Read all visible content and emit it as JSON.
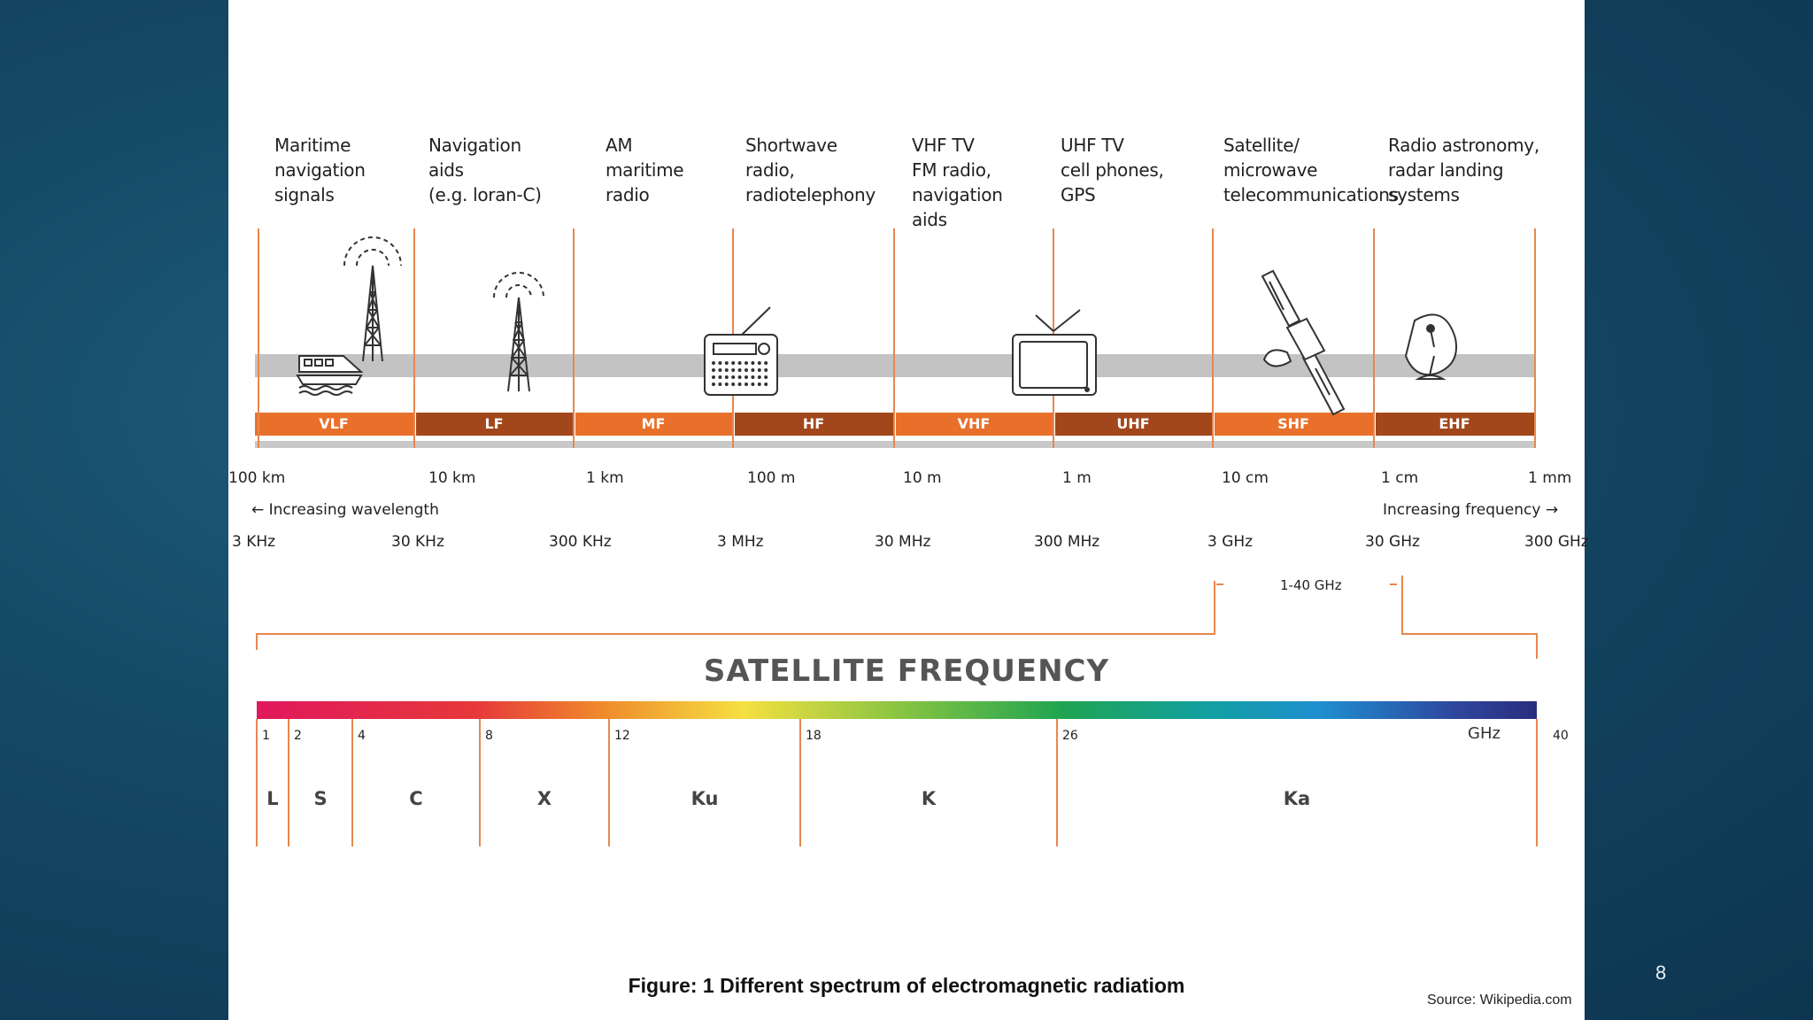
{
  "slide_number": "8",
  "caption": "Figure: 1 Different spectrum of electromagnetic radiatiom",
  "source": "Source: Wikipedia.com",
  "colors": {
    "light_band": "#e8702a",
    "dark_band": "#a2471c",
    "divider": "#e8874f",
    "gray_bar": "#c3c3c3"
  },
  "uses": [
    "Maritime\nnavigation\nsignals",
    "Navigation\naids\n(e.g. loran-C)",
    "AM\nmaritime\nradio",
    "Shortwave\nradio,\nradiotelephony",
    "VHF TV\nFM radio,\nnavigation\naids",
    "UHF TV\ncell phones,\nGPS",
    "Satellite/\nmicrowave\ntelecommunications",
    "Radio astronomy,\nradar landing\nsystems"
  ],
  "icons": [
    "ship-icon",
    "radio-tower-icon",
    "radio-tower-icon",
    "radio-icon",
    "television-icon",
    "satellite-icon",
    "satellite-dish-icon"
  ],
  "bands": [
    "VLF",
    "LF",
    "MF",
    "HF",
    "VHF",
    "UHF",
    "SHF",
    "EHF"
  ],
  "wavelengths": [
    "100 km",
    "10 km",
    "1 km",
    "100 m",
    "10 m",
    "1 m",
    "10 cm",
    "1 cm",
    "1 mm"
  ],
  "frequencies": [
    "3 KHz",
    "30 KHz",
    "300 KHz",
    "3 MHz",
    "30 MHz",
    "300 MHz",
    "3 GHz",
    "30 GHz",
    "300 GHz"
  ],
  "increasing_wavelength": "← Increasing wavelength",
  "increasing_frequency": "Increasing frequency →",
  "ghz_range": "1-40 GHz",
  "satellite": {
    "title": "SATELLITE FREQUENCY",
    "unit": "GHz",
    "ticks": [
      "1",
      "2",
      "4",
      "8",
      "12",
      "18",
      "26",
      "40"
    ],
    "bands": [
      "L",
      "S",
      "C",
      "X",
      "Ku",
      "K",
      "Ka"
    ]
  }
}
